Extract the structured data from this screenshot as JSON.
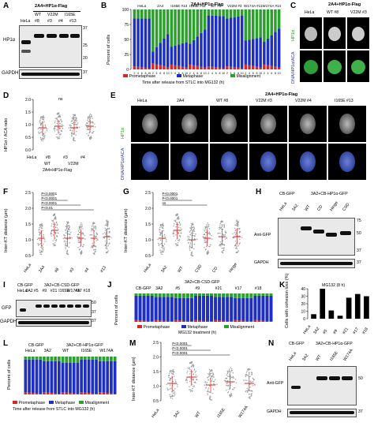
{
  "panels": {
    "A": {
      "letter": "A",
      "header": "2A4+HP1α-Flag",
      "col_top": [
        "WT",
        "V22M",
        "I165E"
      ],
      "lanes": [
        "HeLa",
        "#8",
        "#3",
        "#4",
        "#13"
      ],
      "row1": "HP1α",
      "row2": "GAPDH",
      "mw": [
        "37",
        "25",
        "20",
        "37"
      ]
    },
    "B": {
      "letter": "B",
      "header": "2A4+HP1α-Flag",
      "groups": [
        "HeLa",
        "2A4",
        "I165E #13",
        "I165E #11",
        "WT #8",
        "V22M #3",
        "W174A #11",
        "W174A #14"
      ],
      "ylabel": "Percent of cells",
      "xlabel": "Time after release from STLC into MG132 (h)",
      "ticks_x": "2 4 6 8 10",
      "legend": [
        "Prometaphase",
        "Metaphase",
        "Misalignment"
      ],
      "yticks": [
        "100",
        "75",
        "50",
        "25",
        "0"
      ]
    },
    "C": {
      "letter": "C",
      "header": "2A4+HP1α-Flag",
      "cols": [
        "HeLa",
        "WT #8",
        "V22M #3"
      ],
      "row1": "HP1α",
      "row2": "DNA/HP1α/ACA"
    },
    "D": {
      "letter": "D",
      "ylabel": "HP1α / ACA ratio",
      "yticks": [
        "2.0",
        "1.5",
        "1.0",
        "0.5",
        "0.0"
      ],
      "ns": "ns",
      "cats": [
        "HeLa",
        "#8",
        "#3",
        "#4"
      ],
      "grp1": "WT",
      "grp2": "V22M",
      "sub": "2A4+HP1α-Flag"
    },
    "E": {
      "letter": "E",
      "header": "2A4+HP1α-Flag",
      "cols": [
        "HeLa",
        "2A4",
        "WT #8",
        "V22M #3",
        "V22M #4",
        "I165E #13"
      ],
      "row1": "HP1α",
      "row2": "DNA/HP1α/ACA"
    },
    "F": {
      "letter": "F",
      "ylabel": "Inter-KT distance (μm)",
      "yticks": [
        "2.5",
        "2.0",
        "1.5",
        "1.0",
        "0.5"
      ],
      "sig": [
        "P<0.0001",
        "P<0.0001",
        "P<0.0001",
        "P<0.01"
      ],
      "cats": [
        "HeLa",
        "2A4",
        "#8",
        "#3",
        "#4",
        "#13"
      ],
      "grp": [
        "WT",
        "V22M",
        "I165E"
      ]
    },
    "G": {
      "letter": "G",
      "ylabel": "Inter-KT distance (μm)",
      "yticks": [
        "2.5",
        "2.0",
        "1.5",
        "1.0",
        "0.5"
      ],
      "sig": [
        "P<0.0001",
        "P<0.0001",
        "ns"
      ],
      "cats": [
        "HeLa",
        "3A2",
        "WT",
        "CSD",
        "CD",
        "Hinge"
      ],
      "grp1": "CB-GFP",
      "grp2": "3A2+CB-HP1α-GFP"
    },
    "H": {
      "letter": "H",
      "header1": "CB-GFP",
      "header2": "3A2+CB-HP1α-GFP",
      "lanes": [
        "HeLa",
        "3A2",
        "WT",
        "CD",
        "Hinge",
        "CSD"
      ],
      "row1": "Anti-GFP",
      "row2": "GAPDH",
      "mw": [
        "75",
        "50",
        "37",
        "37"
      ]
    },
    "I": {
      "letter": "I",
      "header1": "CB-GFP",
      "header2": "3A2+CB-CSD-GFP",
      "lanes": [
        "HeLa",
        "3A2",
        "#5",
        "#9",
        "#21",
        "I165E",
        "W174A",
        "#17",
        "#18"
      ],
      "row1": "GFP",
      "row2": "GAPDH",
      "mw": [
        "50",
        "37",
        "37"
      ]
    },
    "J": {
      "letter": "J",
      "header": "3A2+CB-CSD-GFP",
      "groups": [
        "CB-GFP",
        "3A2",
        "#5",
        "#9",
        "#21",
        "#17",
        "#18"
      ],
      "grp": [
        "WT",
        "I165E",
        "W174A"
      ],
      "ylabel": "Percent of cells",
      "xlabel": "MG132 treatment (h)",
      "legend": [
        "Prometaphase",
        "Metaphase",
        "Misalignment"
      ]
    },
    "K": {
      "letter": "K",
      "title": "MG132 (8 h)",
      "ylabel": "Cells with cohesion loss (%)",
      "yticks": [
        "40",
        "30",
        "20",
        "10",
        "0"
      ],
      "cats": [
        "HeLa",
        "3A2",
        "#5",
        "#9",
        "#21",
        "#17",
        "#18"
      ],
      "grp": [
        "WT",
        "I165E",
        "W174A"
      ],
      "sub1": "CB-GFP",
      "sub2": "3A2+CB-CSD-GFP"
    },
    "L": {
      "letter": "L",
      "header1": "CB-GFP",
      "header2": "3A2+CB-HP1α-GFP",
      "groups": [
        "HeLa",
        "3A2",
        "WT",
        "I165E",
        "W174A"
      ],
      "ylabel": "Percent of cells",
      "xlabel": "Time after release from STLC into MG132 (h)",
      "legend": [
        "Prometaphase",
        "Metaphase",
        "Misalignment"
      ]
    },
    "M": {
      "letter": "M",
      "ylabel": "Inter-KT distance (μm)",
      "yticks": [
        "2.5",
        "2.0",
        "1.5",
        "1.0",
        "0.5"
      ],
      "sig": [
        "P<0.0001",
        "P<0.0001",
        "P<0.0001"
      ],
      "cats": [
        "HeLa",
        "3A2",
        "WT",
        "I165E",
        "W174A"
      ],
      "sub1": "CB-GFP",
      "sub2": "3A2+CB-HP1α-GFP"
    },
    "N": {
      "letter": "N",
      "header1": "CB-GFP",
      "header2": "3A2+CB-HP1α-GFP",
      "lanes": [
        "HeLa",
        "3A2",
        "WT",
        "I165E",
        "W174A"
      ],
      "row1": "Anti-GFP",
      "row2": "GAPDH",
      "mw": [
        "50",
        "37"
      ]
    }
  },
  "chart_data": [
    {
      "type": "bar",
      "panel": "B",
      "stacked": true,
      "categories": [
        "HeLa",
        "2A4",
        "I165E #13",
        "I165E #11",
        "WT #8",
        "V22M #3",
        "W174A #11",
        "W174A #14"
      ],
      "x_ticks": [
        2,
        4,
        6,
        8,
        10
      ],
      "series": [
        {
          "name": "Prometaphase",
          "values": [
            5,
            10,
            8,
            8,
            5,
            5,
            8,
            8
          ]
        },
        {
          "name": "Metaphase",
          "values": [
            80,
            20,
            30,
            35,
            85,
            80,
            40,
            38
          ]
        },
        {
          "name": "Misalignment",
          "values": [
            15,
            70,
            62,
            57,
            10,
            15,
            52,
            54
          ]
        }
      ],
      "ylim": [
        0,
        100
      ]
    },
    {
      "type": "bar",
      "panel": "K",
      "categories": [
        "HeLa",
        "3A2",
        "#5",
        "#9",
        "#21",
        "#17",
        "#18"
      ],
      "values": [
        6,
        40,
        11,
        4,
        28,
        33,
        30
      ],
      "ylim": [
        0,
        40
      ]
    }
  ],
  "colors": {
    "prometaphase": "#d62728",
    "metaphase": "#1f2fbf",
    "misalignment": "#2ca02c",
    "dots": "#9a9a9a",
    "mean": "#d62728"
  }
}
